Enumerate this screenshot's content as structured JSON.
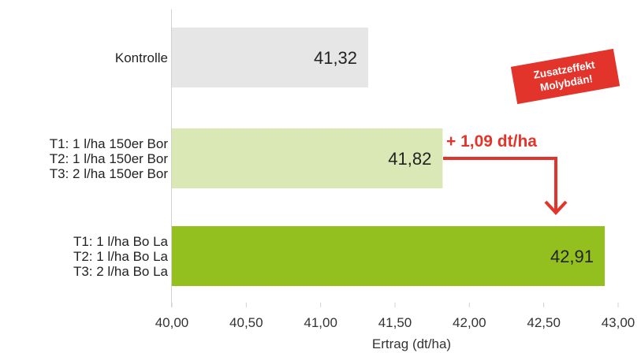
{
  "chart_data": {
    "type": "bar",
    "orientation": "horizontal",
    "categories": [
      [
        "Kontrolle"
      ],
      [
        "T1: 1 l/ha 150er Bor",
        "T2: 1 l/ha 150er Bor",
        "T3: 2 l/ha 150er Bor"
      ],
      [
        "T1: 1 l/ha Bo La",
        "T2: 1 l/ha Bo La",
        "T3: 2 l/ha Bo La"
      ]
    ],
    "values": [
      41.32,
      41.82,
      42.91
    ],
    "value_labels": [
      "41,32",
      "41,82",
      "42,91"
    ],
    "xlabel": "Ertrag (dt/ha)",
    "xlim": [
      40.0,
      43.0
    ],
    "xticks": [
      40.0,
      40.5,
      41.0,
      41.5,
      42.0,
      42.5,
      43.0
    ],
    "xtick_labels": [
      "40,00",
      "40,50",
      "41,00",
      "41,50",
      "42,00",
      "42,50",
      "43,00"
    ],
    "grid": false,
    "colors": [
      "#e6e6e6",
      "#d9e8b5",
      "#93c01f"
    ],
    "annotations": {
      "difference": "+ 1,09 dt/ha",
      "badge": [
        "Zusatzeffekt",
        "Molybdän!"
      ],
      "accent_color": "#e3342b"
    }
  }
}
